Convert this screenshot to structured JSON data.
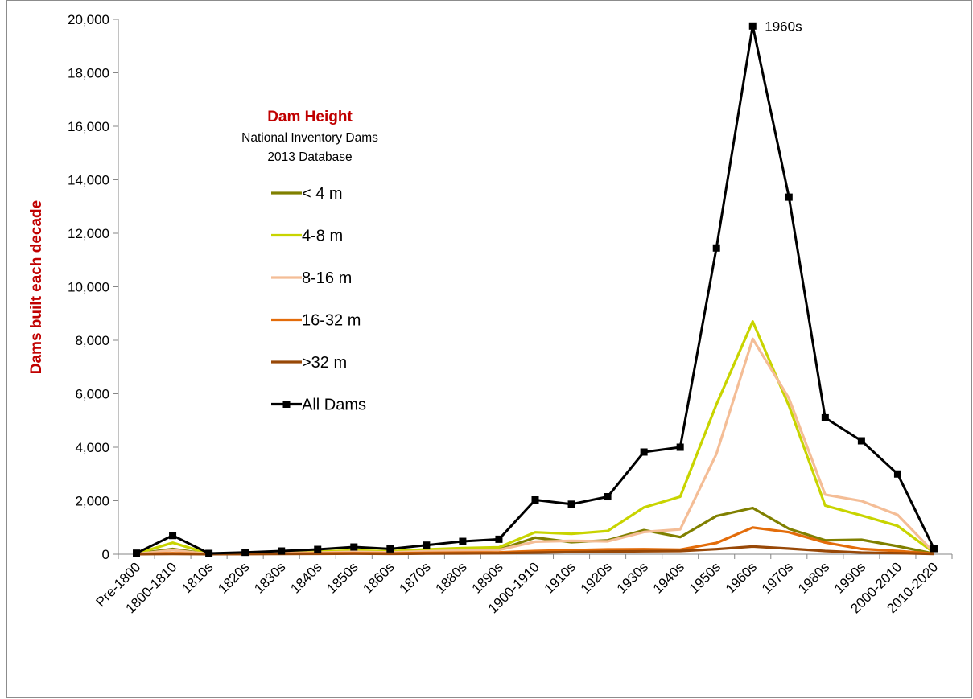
{
  "chart_data": {
    "type": "line",
    "title": "",
    "xlabel": "",
    "ylabel": "Dams built each decade",
    "ylim": [
      0,
      20000
    ],
    "yticks": [
      "0",
      "2,000",
      "4,000",
      "6,000",
      "8,000",
      "10,000",
      "12,000",
      "14,000",
      "16,000",
      "18,000",
      "20,000"
    ],
    "grid": false,
    "legend": {
      "title": "Dam Height",
      "subtitle_lines": [
        "National Inventory Dams",
        "2013 Database"
      ],
      "placement": "upper-left"
    },
    "categories": [
      "Pre-1800",
      "1800-1810",
      "1810s",
      "1820s",
      "1830s",
      "1840s",
      "1850s",
      "1860s",
      "1870s",
      "1880s",
      "1890s",
      "1900-1910",
      "1910s",
      "1920s",
      "1930s",
      "1940s",
      "1950s",
      "1960s",
      "1970s",
      "1980s",
      "1990s",
      "2000-2010",
      "2010-2020"
    ],
    "series": [
      {
        "name": "< 4 m",
        "color": "#808000",
        "marker": "none",
        "values": [
          20,
          200,
          10,
          20,
          40,
          60,
          90,
          70,
          110,
          140,
          170,
          620,
          450,
          520,
          900,
          640,
          1430,
          1730,
          950,
          520,
          540,
          300,
          20
        ]
      },
      {
        "name": "4-8 m",
        "color": "#c8d400",
        "marker": "none",
        "values": [
          20,
          430,
          20,
          40,
          70,
          100,
          140,
          110,
          180,
          230,
          260,
          820,
          760,
          870,
          1750,
          2150,
          5600,
          8700,
          5550,
          1820,
          1450,
          1060,
          60
        ]
      },
      {
        "name": "8-16 m",
        "color": "#f4bd96",
        "marker": "none",
        "values": [
          10,
          150,
          10,
          20,
          40,
          60,
          90,
          70,
          110,
          140,
          160,
          470,
          500,
          480,
          830,
          930,
          3750,
          8050,
          5830,
          2230,
          1990,
          1470,
          70
        ]
      },
      {
        "name": "16-32 m",
        "color": "#e36c0a",
        "marker": "none",
        "values": [
          5,
          40,
          5,
          10,
          20,
          30,
          40,
          30,
          50,
          60,
          70,
          120,
          150,
          180,
          190,
          170,
          420,
          1000,
          820,
          440,
          200,
          120,
          20
        ]
      },
      {
        "name": ">32 m",
        "color": "#984807",
        "marker": "none",
        "values": [
          2,
          10,
          2,
          5,
          10,
          15,
          20,
          15,
          25,
          30,
          35,
          60,
          80,
          100,
          110,
          120,
          190,
          290,
          210,
          120,
          60,
          40,
          10
        ]
      },
      {
        "name": "All Dams",
        "color": "#000000",
        "marker": "square",
        "values": [
          40,
          700,
          30,
          70,
          120,
          180,
          270,
          200,
          340,
          480,
          560,
          2030,
          1870,
          2150,
          3820,
          4000,
          11450,
          19750,
          13350,
          5100,
          4240,
          3000,
          210
        ]
      }
    ],
    "annotations": [
      {
        "text": "1960s",
        "category": "1960s",
        "series": "All Dams"
      }
    ]
  }
}
